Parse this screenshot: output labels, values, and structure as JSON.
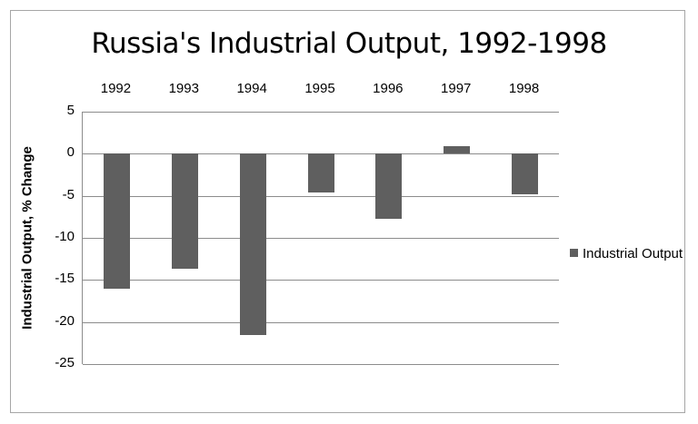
{
  "chart_data": {
    "type": "bar",
    "title": "Russia's Industrial Output, 1992-1998",
    "categories": [
      "1992",
      "1993",
      "1994",
      "1995",
      "1996",
      "1997",
      "1998"
    ],
    "series": [
      {
        "name": "Industrial Output",
        "values": [
          -16.0,
          -13.7,
          -21.6,
          -4.6,
          -7.7,
          0.9,
          -4.8
        ],
        "color": "#5f5f5f"
      }
    ],
    "xlabel": "",
    "ylabel": "Industrial Output, % Change",
    "ylim": [
      -25,
      5
    ],
    "yticks": [
      5,
      0,
      -5,
      -10,
      -15,
      -20,
      -25
    ],
    "grid": true,
    "legend_position": "right",
    "category_labels_position": "top"
  },
  "legend": {
    "label": "Industrial Output"
  }
}
